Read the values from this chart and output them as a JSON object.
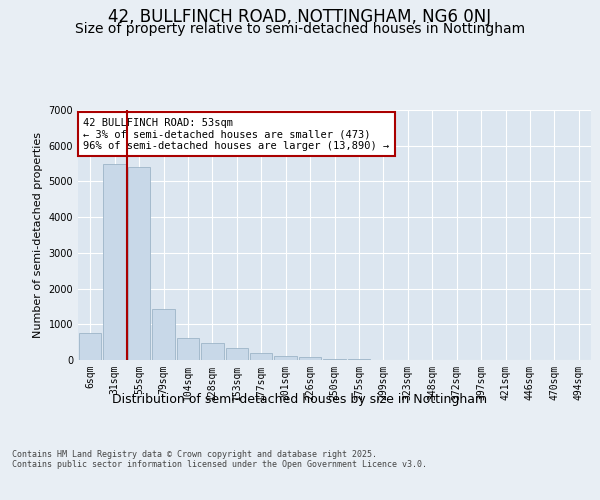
{
  "title": "42, BULLFINCH ROAD, NOTTINGHAM, NG6 0NJ",
  "subtitle": "Size of property relative to semi-detached houses in Nottingham",
  "xlabel": "Distribution of semi-detached houses by size in Nottingham",
  "ylabel": "Number of semi-detached properties",
  "categories": [
    "6sqm",
    "31sqm",
    "55sqm",
    "79sqm",
    "104sqm",
    "128sqm",
    "153sqm",
    "177sqm",
    "201sqm",
    "226sqm",
    "250sqm",
    "275sqm",
    "299sqm",
    "323sqm",
    "348sqm",
    "372sqm",
    "397sqm",
    "421sqm",
    "446sqm",
    "470sqm",
    "494sqm"
  ],
  "values": [
    750,
    5500,
    5400,
    1430,
    620,
    480,
    340,
    195,
    120,
    80,
    35,
    15,
    8,
    4,
    2,
    1,
    0,
    0,
    0,
    0,
    0
  ],
  "bar_color": "#c8d8e8",
  "bar_edge_color": "#9db5c8",
  "vline_color": "#aa0000",
  "annotation_text": "42 BULLFINCH ROAD: 53sqm\n← 3% of semi-detached houses are smaller (473)\n96% of semi-detached houses are larger (13,890) →",
  "annotation_box_color": "#ffffff",
  "annotation_box_edge": "#aa0000",
  "background_color": "#e8eef4",
  "plot_bg_color": "#dce6f0",
  "footer": "Contains HM Land Registry data © Crown copyright and database right 2025.\nContains public sector information licensed under the Open Government Licence v3.0.",
  "ylim": [
    0,
    7000
  ],
  "yticks": [
    0,
    1000,
    2000,
    3000,
    4000,
    5000,
    6000,
    7000
  ],
  "title_fontsize": 12,
  "subtitle_fontsize": 10,
  "xlabel_fontsize": 9,
  "ylabel_fontsize": 8,
  "tick_fontsize": 7,
  "footer_fontsize": 6,
  "annotation_fontsize": 7.5
}
